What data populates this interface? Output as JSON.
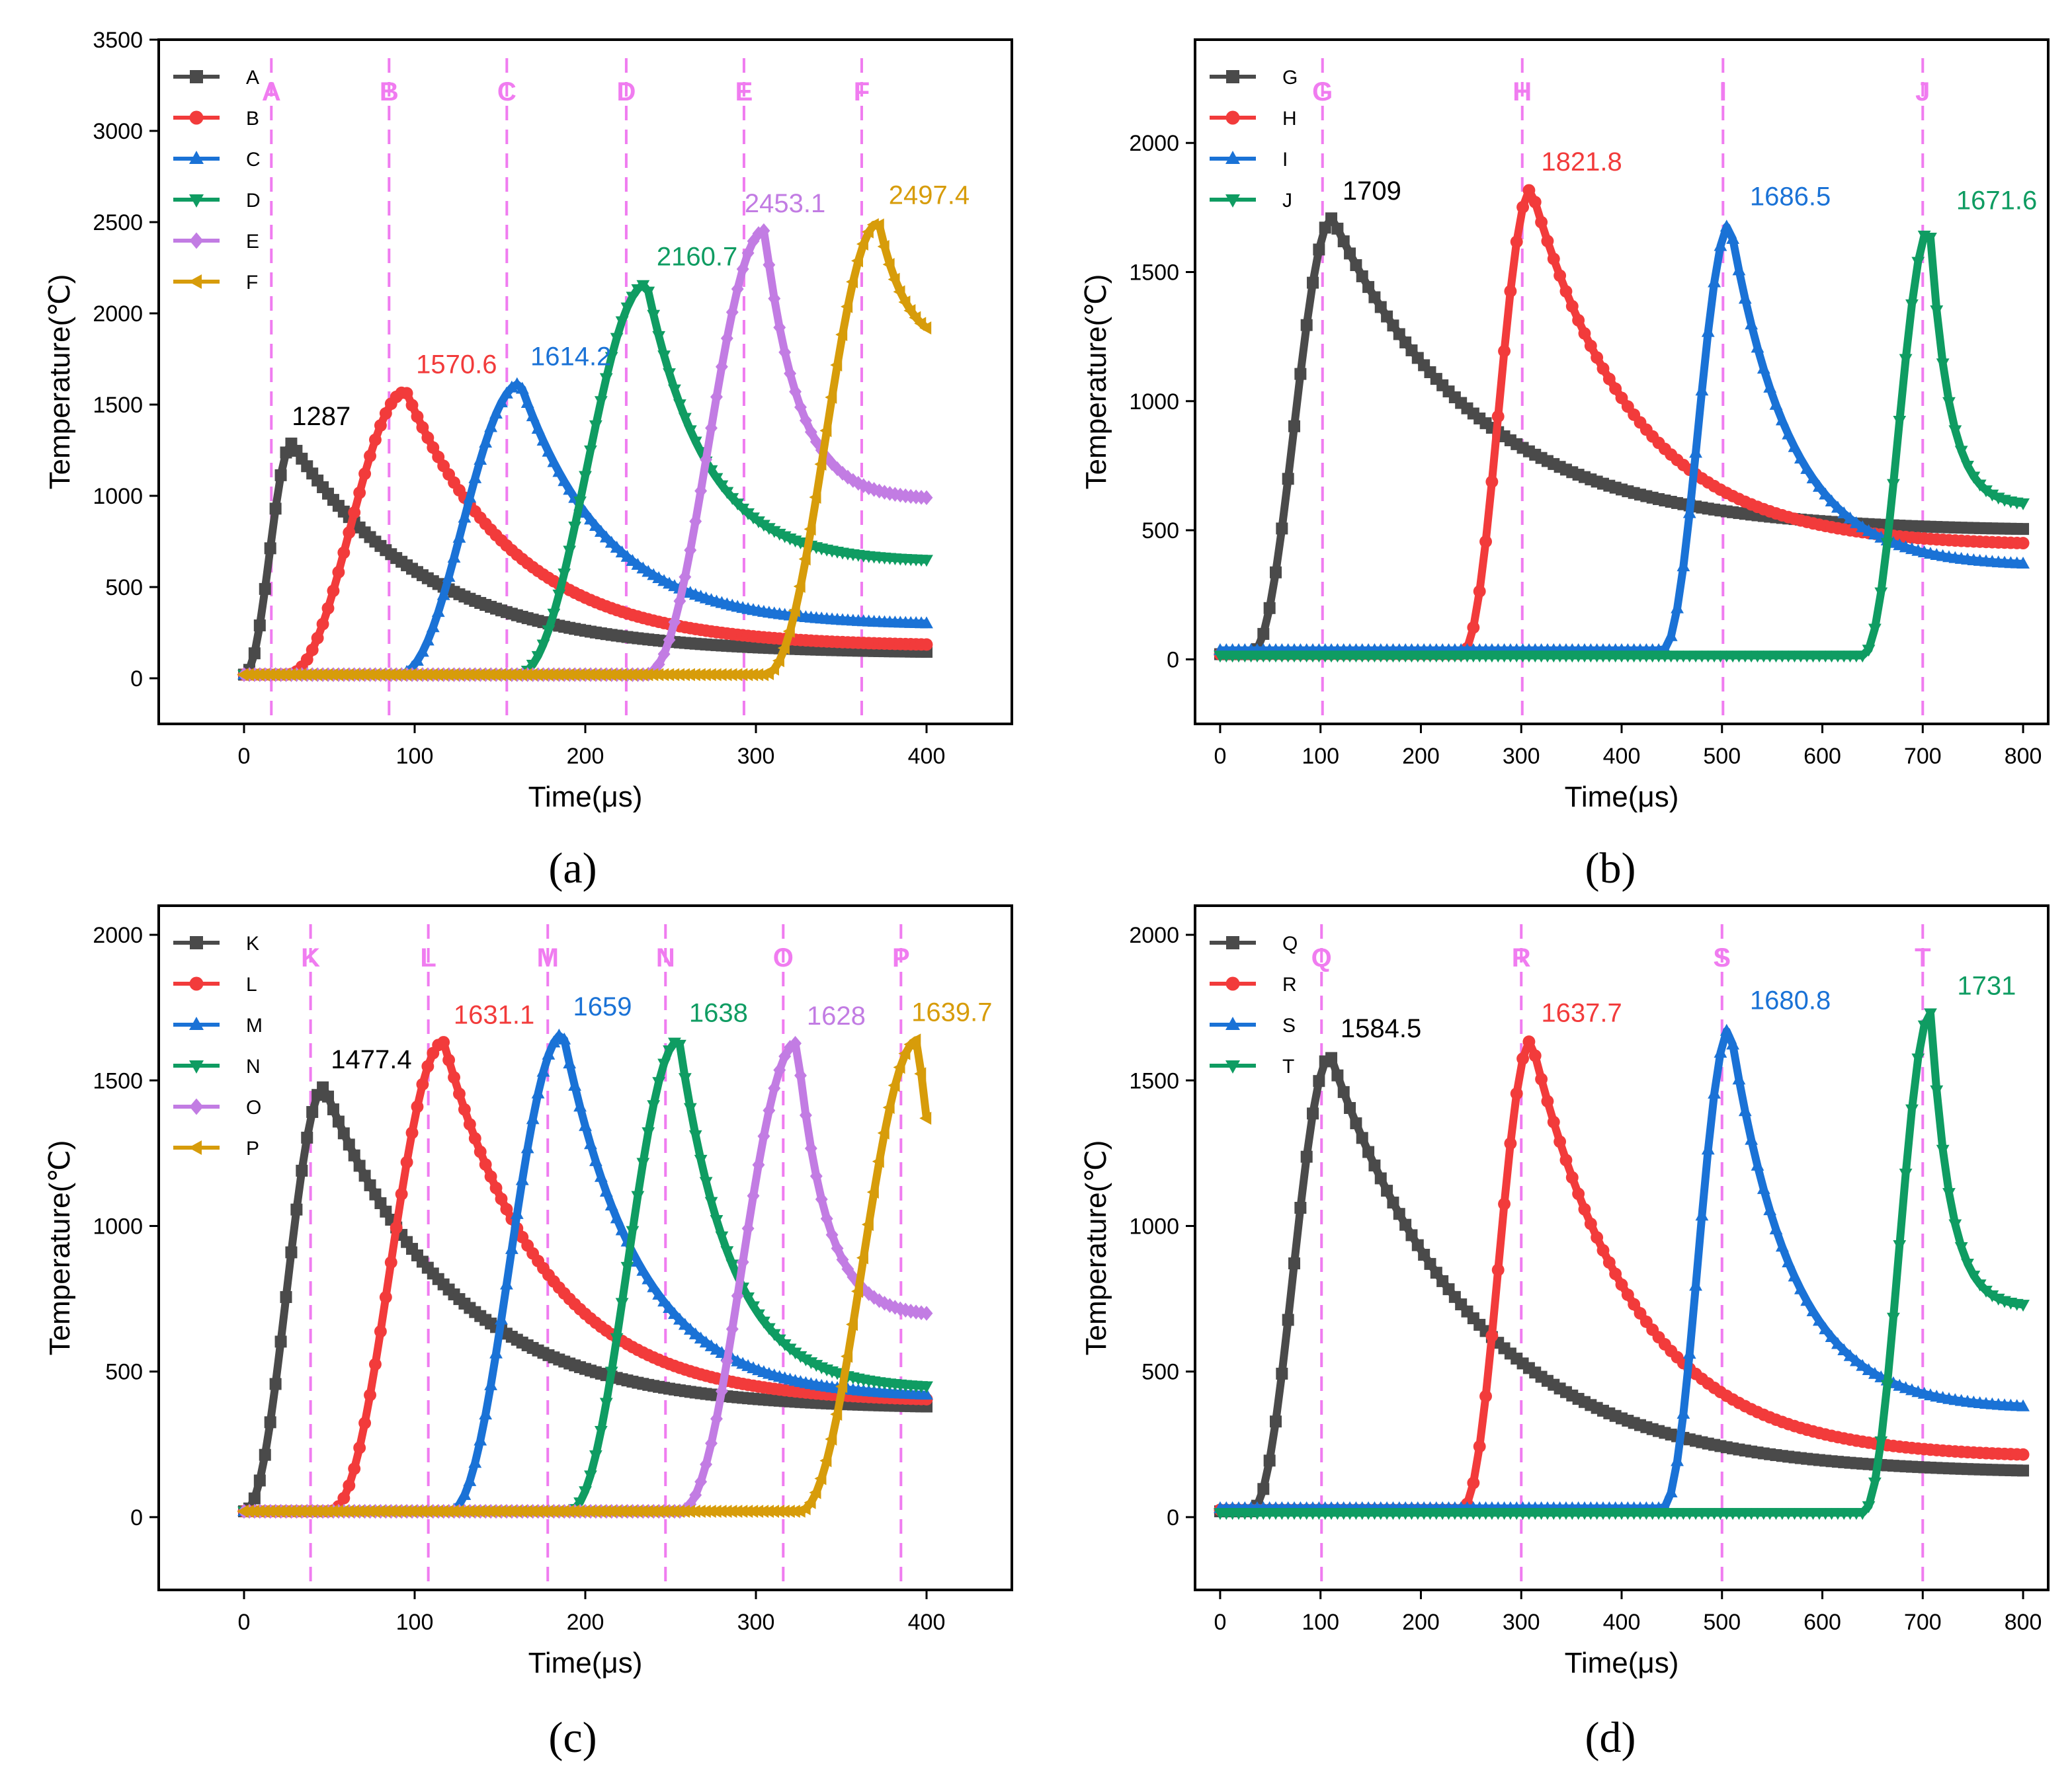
{
  "figure": {
    "panel_labels": [
      "(a)",
      "(b)",
      "(c)",
      "(d)"
    ]
  },
  "colors": {
    "black": "#4a4a4a",
    "red": "#f23b3b",
    "blue": "#1a72d6",
    "green": "#0f9c62",
    "purple": "#c27ce3",
    "gold": "#d79c0a",
    "marker_line": "#f07cf0",
    "axis": "#000000"
  },
  "chart_data": [
    {
      "type": "line",
      "panel": "(a)",
      "xlabel": "Time(μs)",
      "ylabel": "Temperature(℃)",
      "xlim": [
        -50,
        450
      ],
      "ylim": [
        -250,
        3500
      ],
      "xticks": [
        0,
        100,
        200,
        300,
        400
      ],
      "yticks": [
        0,
        500,
        1000,
        1500,
        2000,
        2500,
        3000,
        3500
      ],
      "legend": "top-left",
      "markers": [
        {
          "label": "A",
          "x": 16
        },
        {
          "label": "B",
          "x": 85
        },
        {
          "label": "C",
          "x": 154
        },
        {
          "label": "D",
          "x": 224
        },
        {
          "label": "E",
          "x": 293
        },
        {
          "label": "F",
          "x": 362
        }
      ],
      "series": [
        {
          "name": "A",
          "color": "black",
          "marker": "square",
          "peak_x": 28,
          "peak": 1287,
          "peak_label": "1287",
          "rise_start": 0,
          "end": 400,
          "base": 20,
          "final": 145
        },
        {
          "name": "B",
          "color": "red",
          "marker": "circle",
          "peak_x": 95,
          "peak": 1570.6,
          "peak_label": "1570.6",
          "rise_start": 25,
          "end": 400,
          "base": 20,
          "final": 185
        },
        {
          "name": "C",
          "color": "blue",
          "marker": "triangle-up",
          "peak_x": 162,
          "peak": 1614.2,
          "peak_label": "1614.2",
          "rise_start": 90,
          "end": 400,
          "base": 20,
          "final": 300
        },
        {
          "name": "D",
          "color": "green",
          "marker": "triangle-down",
          "peak_x": 236,
          "peak": 2160.7,
          "peak_label": "2160.7",
          "rise_start": 160,
          "end": 400,
          "base": 20,
          "final": 650
        },
        {
          "name": "E",
          "color": "purple",
          "marker": "diamond",
          "peak_x": 305,
          "peak": 2453.1,
          "peak_label": "2453.1",
          "rise_start": 235,
          "end": 400,
          "base": 20,
          "final": 990
        },
        {
          "name": "F",
          "color": "gold",
          "marker": "triangle-left",
          "peak_x": 372,
          "peak": 2497.4,
          "peak_label": "2497.4",
          "rise_start": 305,
          "end": 400,
          "base": 20,
          "final": 1920
        }
      ]
    },
    {
      "type": "line",
      "panel": "(b)",
      "xlabel": "Time(μs)",
      "ylabel": "Temperature(℃)",
      "xlim": [
        -25,
        825
      ],
      "ylim": [
        -250,
        2400
      ],
      "xticks": [
        0,
        100,
        200,
        300,
        400,
        500,
        600,
        700,
        800
      ],
      "yticks": [
        0,
        500,
        1000,
        1500,
        2000
      ],
      "legend": "top-left",
      "markers": [
        {
          "label": "G",
          "x": 102
        },
        {
          "label": "H",
          "x": 301
        },
        {
          "label": "I",
          "x": 501
        },
        {
          "label": "J",
          "x": 700
        }
      ],
      "series": [
        {
          "name": "G",
          "color": "black",
          "marker": "square",
          "peak_x": 112,
          "peak": 1709,
          "peak_label": "1709",
          "rise_start": 30,
          "end": 800,
          "base": 20,
          "final": 505
        },
        {
          "name": "H",
          "color": "red",
          "marker": "circle",
          "peak_x": 310,
          "peak": 1821.8,
          "peak_label": "1821.8",
          "rise_start": 240,
          "end": 800,
          "base": 20,
          "final": 450
        },
        {
          "name": "I",
          "color": "blue",
          "marker": "triangle-up",
          "peak_x": 508,
          "peak": 1686.5,
          "peak_label": "1686.5",
          "rise_start": 440,
          "end": 800,
          "base": 35,
          "final": 370
        },
        {
          "name": "J",
          "color": "green",
          "marker": "triangle-down",
          "peak_x": 707,
          "peak": 1671.6,
          "peak_label": "1671.6",
          "rise_start": 640,
          "end": 800,
          "base": 15,
          "final": 605
        }
      ]
    },
    {
      "type": "line",
      "panel": "(c)",
      "xlabel": "Time(μs)",
      "ylabel": "Temperature(℃)",
      "xlim": [
        -50,
        450
      ],
      "ylim": [
        -250,
        2100
      ],
      "xticks": [
        0,
        100,
        200,
        300,
        400
      ],
      "yticks": [
        0,
        500,
        1000,
        1500,
        2000
      ],
      "legend": "top-left",
      "markers": [
        {
          "label": "K",
          "x": 39
        },
        {
          "label": "L",
          "x": 108
        },
        {
          "label": "M",
          "x": 178
        },
        {
          "label": "N",
          "x": 247
        },
        {
          "label": "O",
          "x": 316
        },
        {
          "label": "P",
          "x": 385
        }
      ],
      "series": [
        {
          "name": "K",
          "color": "black",
          "marker": "square",
          "peak_x": 47,
          "peak": 1477.4,
          "peak_label": "1477.4",
          "rise_start": 0,
          "end": 400,
          "base": 20,
          "final": 380
        },
        {
          "name": "L",
          "color": "red",
          "marker": "circle",
          "peak_x": 117,
          "peak": 1631.1,
          "peak_label": "1631.1",
          "rise_start": 50,
          "end": 400,
          "base": 20,
          "final": 405
        },
        {
          "name": "M",
          "color": "blue",
          "marker": "triangle-up",
          "peak_x": 187,
          "peak": 1659,
          "peak_label": "1659",
          "rise_start": 120,
          "end": 400,
          "base": 20,
          "final": 420
        },
        {
          "name": "N",
          "color": "green",
          "marker": "triangle-down",
          "peak_x": 255,
          "peak": 1638,
          "peak_label": "1638",
          "rise_start": 190,
          "end": 400,
          "base": 20,
          "final": 450
        },
        {
          "name": "O",
          "color": "purple",
          "marker": "diamond",
          "peak_x": 324,
          "peak": 1628,
          "peak_label": "1628",
          "rise_start": 255,
          "end": 400,
          "base": 20,
          "final": 700
        },
        {
          "name": "P",
          "color": "gold",
          "marker": "triangle-left",
          "peak_x": 395,
          "peak": 1639.7,
          "peak_label": "1639.7",
          "rise_start": 325,
          "end": 400,
          "base": 20,
          "final": 1370
        }
      ]
    },
    {
      "type": "line",
      "panel": "(d)",
      "xlabel": "Time(μs)",
      "ylabel": "Temperature(℃)",
      "xlim": [
        -25,
        825
      ],
      "ylim": [
        -250,
        2100
      ],
      "xticks": [
        0,
        100,
        200,
        300,
        400,
        500,
        600,
        700,
        800
      ],
      "yticks": [
        0,
        500,
        1000,
        1500,
        2000
      ],
      "legend": "top-left",
      "markers": [
        {
          "label": "Q",
          "x": 101
        },
        {
          "label": "R",
          "x": 300
        },
        {
          "label": "S",
          "x": 500
        },
        {
          "label": "T",
          "x": 700
        }
      ],
      "series": [
        {
          "name": "Q",
          "color": "black",
          "marker": "square",
          "peak_x": 110,
          "peak": 1584.5,
          "peak_label": "1584.5",
          "rise_start": 30,
          "end": 800,
          "base": 20,
          "final": 160
        },
        {
          "name": "R",
          "color": "red",
          "marker": "circle",
          "peak_x": 310,
          "peak": 1637.7,
          "peak_label": "1637.7",
          "rise_start": 240,
          "end": 800,
          "base": 25,
          "final": 215
        },
        {
          "name": "S",
          "color": "blue",
          "marker": "triangle-up",
          "peak_x": 508,
          "peak": 1680.8,
          "peak_label": "1680.8",
          "rise_start": 440,
          "end": 800,
          "base": 30,
          "final": 380
        },
        {
          "name": "T",
          "color": "green",
          "marker": "triangle-down",
          "peak_x": 708,
          "peak": 1731,
          "peak_label": "1731",
          "rise_start": 640,
          "end": 800,
          "base": 15,
          "final": 730
        }
      ]
    }
  ]
}
